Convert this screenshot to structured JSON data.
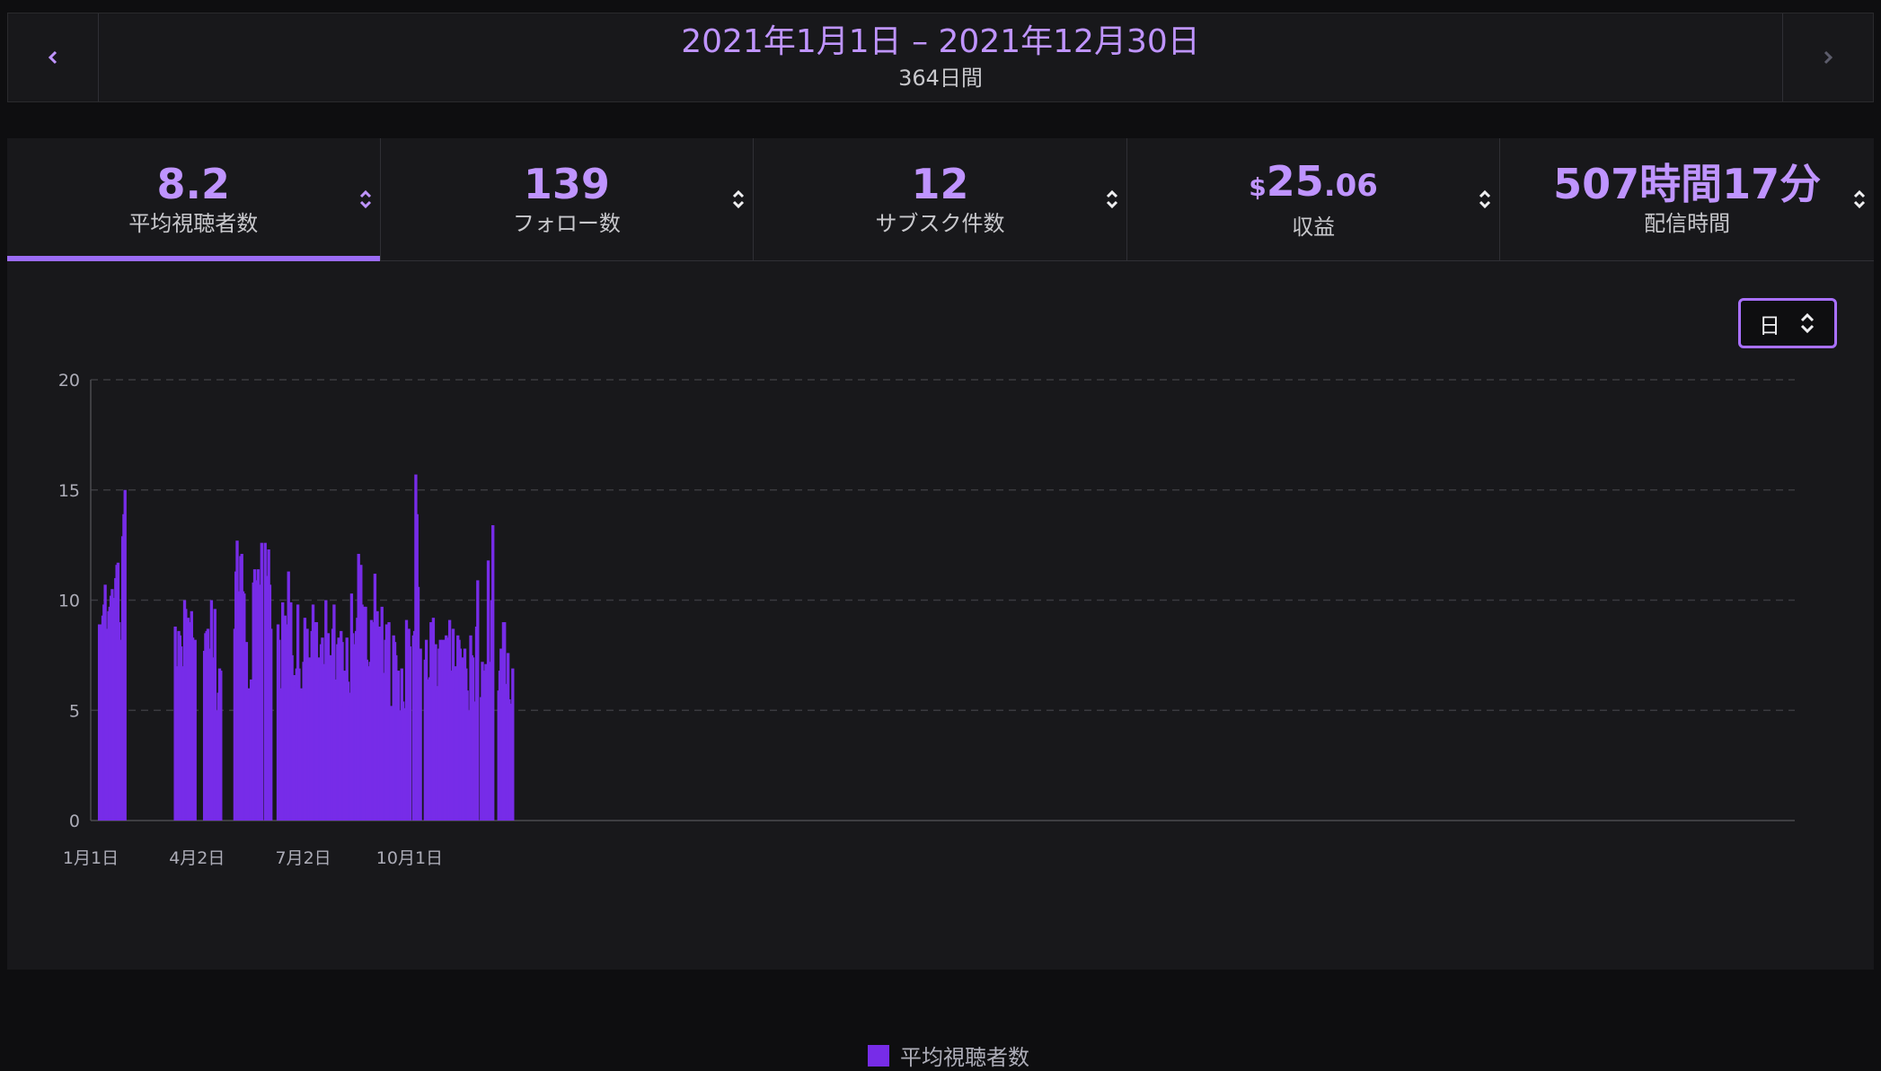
{
  "header": {
    "date_range": "2021年1月1日 – 2021年12月30日",
    "days": "364日間",
    "prev_icon": "chevron-left-icon",
    "next_icon": "chevron-right-icon"
  },
  "tabs": [
    {
      "value": "8.2",
      "label": "平均視聴者数",
      "active": true
    },
    {
      "value": "139",
      "label": "フォロー数"
    },
    {
      "value": "12",
      "label": "サブスク件数"
    },
    {
      "dollar": "$",
      "value": "25",
      "cents": ".06",
      "label": "収益"
    },
    {
      "value": "507時間17分",
      "label": "配信時間"
    }
  ],
  "interval": {
    "selected": "日",
    "icon": "sort-chevrons-icon"
  },
  "colors": {
    "accent": "#bf94ff",
    "bar": "#772ce8",
    "active_underline": "#9b6cf6"
  },
  "chart_data": {
    "type": "bar",
    "title": "",
    "xlabel": "",
    "ylabel": "",
    "ylim": [
      0,
      20
    ],
    "yticks": [
      "0",
      "5",
      "10",
      "15",
      "20"
    ],
    "xticks": [
      {
        "label": "1月1日",
        "date": "2021-01-01"
      },
      {
        "label": "4月2日",
        "date": "2021-04-02"
      },
      {
        "label": "7月2日",
        "date": "2021-07-02"
      },
      {
        "label": "10月1日",
        "date": "2021-10-01"
      }
    ],
    "grid": true,
    "legend_position": "bottom-center",
    "series": [
      {
        "name": "平均視聴者数",
        "color": "#772ce8",
        "points": [
          [
            "2021-01-07",
            8.9
          ],
          [
            "2021-01-08",
            7.8
          ],
          [
            "2021-01-09",
            8.9
          ],
          [
            "2021-01-10",
            9.3
          ],
          [
            "2021-01-11",
            9.8
          ],
          [
            "2021-01-12",
            10.7
          ],
          [
            "2021-01-13",
            8.6
          ],
          [
            "2021-01-14",
            8.7
          ],
          [
            "2021-01-15",
            9.5
          ],
          [
            "2021-01-16",
            9.7
          ],
          [
            "2021-01-17",
            10.2
          ],
          [
            "2021-01-18",
            10.5
          ],
          [
            "2021-01-19",
            9.3
          ],
          [
            "2021-01-20",
            10.1
          ],
          [
            "2021-01-21",
            11.0
          ],
          [
            "2021-01-22",
            11.6
          ],
          [
            "2021-01-23",
            11.7
          ],
          [
            "2021-01-24",
            9.0
          ],
          [
            "2021-01-25",
            8.2
          ],
          [
            "2021-01-27",
            12.9
          ],
          [
            "2021-01-28",
            13.9
          ],
          [
            "2021-01-29",
            15.0
          ],
          [
            "2021-03-13",
            8.8
          ],
          [
            "2021-03-14",
            7.0
          ],
          [
            "2021-03-15",
            6.6
          ],
          [
            "2021-03-16",
            8.6
          ],
          [
            "2021-03-17",
            8.4
          ],
          [
            "2021-03-18",
            7.9
          ],
          [
            "2021-03-19",
            7.0
          ],
          [
            "2021-03-20",
            6.8
          ],
          [
            "2021-03-21",
            10.0
          ],
          [
            "2021-03-22",
            9.6
          ],
          [
            "2021-03-23",
            9.0
          ],
          [
            "2021-03-24",
            9.2
          ],
          [
            "2021-03-25",
            9.0
          ],
          [
            "2021-03-26",
            6.9
          ],
          [
            "2021-03-27",
            9.5
          ],
          [
            "2021-03-28",
            8.3
          ],
          [
            "2021-03-29",
            8.1
          ],
          [
            "2021-03-30",
            8.2
          ],
          [
            "2021-04-07",
            7.7
          ],
          [
            "2021-04-08",
            8.5
          ],
          [
            "2021-04-09",
            8.6
          ],
          [
            "2021-04-10",
            8.7
          ],
          [
            "2021-04-11",
            7.8
          ],
          [
            "2021-04-13",
            10.0
          ],
          [
            "2021-04-14",
            7.0
          ],
          [
            "2021-04-15",
            7.4
          ],
          [
            "2021-04-16",
            9.6
          ],
          [
            "2021-04-18",
            5.0
          ],
          [
            "2021-04-19",
            5.8
          ],
          [
            "2021-04-20",
            6.9
          ],
          [
            "2021-04-21",
            6.8
          ],
          [
            "2021-05-03",
            8.7
          ],
          [
            "2021-05-04",
            11.3
          ],
          [
            "2021-05-05",
            12.7
          ],
          [
            "2021-05-06",
            10.4
          ],
          [
            "2021-05-07",
            9.3
          ],
          [
            "2021-05-08",
            12.0
          ],
          [
            "2021-05-09",
            12.1
          ],
          [
            "2021-05-10",
            10.4
          ],
          [
            "2021-05-11",
            10.3
          ],
          [
            "2021-05-12",
            7.5
          ],
          [
            "2021-05-13",
            8.1
          ],
          [
            "2021-05-14",
            5.7
          ],
          [
            "2021-05-15",
            6.0
          ],
          [
            "2021-05-17",
            6.4
          ],
          [
            "2021-05-18",
            6.3
          ],
          [
            "2021-05-19",
            10.8
          ],
          [
            "2021-05-20",
            11.4
          ],
          [
            "2021-05-21",
            10.9
          ],
          [
            "2021-05-22",
            8.6
          ],
          [
            "2021-05-23",
            11.4
          ],
          [
            "2021-05-24",
            10.7
          ],
          [
            "2021-05-25",
            10.5
          ],
          [
            "2021-05-26",
            12.6
          ],
          [
            "2021-05-29",
            12.6
          ],
          [
            "2021-05-30",
            10.2
          ],
          [
            "2021-05-31",
            11.1
          ],
          [
            "2021-06-01",
            12.3
          ],
          [
            "2021-06-02",
            10.7
          ],
          [
            "2021-06-03",
            8.7
          ],
          [
            "2021-06-09",
            8.9
          ],
          [
            "2021-06-10",
            8.2
          ],
          [
            "2021-06-11",
            5.6
          ],
          [
            "2021-06-12",
            6.0
          ],
          [
            "2021-06-13",
            9.9
          ],
          [
            "2021-06-14",
            6.7
          ],
          [
            "2021-06-15",
            9.3
          ],
          [
            "2021-06-16",
            8.9
          ],
          [
            "2021-06-17",
            8.8
          ],
          [
            "2021-06-18",
            11.3
          ],
          [
            "2021-06-19",
            8.7
          ],
          [
            "2021-06-20",
            9.9
          ],
          [
            "2021-06-21",
            7.5
          ],
          [
            "2021-06-22",
            5.8
          ],
          [
            "2021-06-23",
            6.6
          ],
          [
            "2021-06-24",
            6.1
          ],
          [
            "2021-06-25",
            6.9
          ],
          [
            "2021-06-26",
            9.8
          ],
          [
            "2021-06-27",
            6.9
          ],
          [
            "2021-06-28",
            5.6
          ],
          [
            "2021-06-29",
            6.0
          ],
          [
            "2021-06-30",
            5.0
          ],
          [
            "2021-07-01",
            7.2
          ],
          [
            "2021-07-02",
            9.2
          ],
          [
            "2021-07-03",
            8.0
          ],
          [
            "2021-07-04",
            8.7
          ],
          [
            "2021-07-05",
            7.3
          ],
          [
            "2021-07-06",
            7.4
          ],
          [
            "2021-07-07",
            7.0
          ],
          [
            "2021-07-08",
            8.6
          ],
          [
            "2021-07-09",
            9.8
          ],
          [
            "2021-07-10",
            7.6
          ],
          [
            "2021-07-11",
            9.0
          ],
          [
            "2021-07-12",
            9.0
          ],
          [
            "2021-07-13",
            5.3
          ],
          [
            "2021-07-14",
            7.4
          ],
          [
            "2021-07-15",
            6.3
          ],
          [
            "2021-07-16",
            8.0
          ],
          [
            "2021-07-17",
            8.3
          ],
          [
            "2021-07-18",
            6.3
          ],
          [
            "2021-07-19",
            7.1
          ],
          [
            "2021-07-20",
            10.0
          ],
          [
            "2021-07-21",
            7.9
          ],
          [
            "2021-07-22",
            8.5
          ],
          [
            "2021-07-23",
            7.5
          ],
          [
            "2021-07-24",
            7.5
          ],
          [
            "2021-07-25",
            7.0
          ],
          [
            "2021-07-26",
            8.7
          ],
          [
            "2021-07-27",
            9.8
          ],
          [
            "2021-07-28",
            6.4
          ],
          [
            "2021-07-29",
            4.9
          ],
          [
            "2021-07-30",
            8.0
          ],
          [
            "2021-07-31",
            8.3
          ],
          [
            "2021-08-01",
            7.0
          ],
          [
            "2021-08-02",
            8.6
          ],
          [
            "2021-08-03",
            8.1
          ],
          [
            "2021-08-04",
            5.2
          ],
          [
            "2021-08-05",
            6.8
          ],
          [
            "2021-08-07",
            8.3
          ],
          [
            "2021-08-08",
            6.3
          ],
          [
            "2021-08-09",
            5.2
          ],
          [
            "2021-08-10",
            5.8
          ],
          [
            "2021-08-11",
            10.3
          ],
          [
            "2021-08-12",
            8.5
          ],
          [
            "2021-08-13",
            6.1
          ],
          [
            "2021-08-14",
            8.0
          ],
          [
            "2021-08-15",
            8.6
          ],
          [
            "2021-08-16",
            9.2
          ],
          [
            "2021-08-17",
            12.1
          ],
          [
            "2021-08-18",
            8.8
          ],
          [
            "2021-08-19",
            11.6
          ],
          [
            "2021-08-20",
            9.8
          ],
          [
            "2021-08-21",
            7.4
          ],
          [
            "2021-08-22",
            9.7
          ],
          [
            "2021-08-23",
            9.7
          ],
          [
            "2021-08-24",
            7.3
          ],
          [
            "2021-08-25",
            7.0
          ],
          [
            "2021-08-27",
            7.2
          ],
          [
            "2021-08-28",
            9.1
          ],
          [
            "2021-08-29",
            8.8
          ],
          [
            "2021-08-30",
            9.0
          ],
          [
            "2021-08-31",
            11.2
          ],
          [
            "2021-09-01",
            7.7
          ],
          [
            "2021-09-02",
            9.5
          ],
          [
            "2021-09-03",
            7.3
          ],
          [
            "2021-09-04",
            8.8
          ],
          [
            "2021-09-05",
            7.5
          ],
          [
            "2021-09-06",
            9.7
          ],
          [
            "2021-09-07",
            5.8
          ],
          [
            "2021-09-08",
            6.7
          ],
          [
            "2021-09-09",
            8.2
          ],
          [
            "2021-09-10",
            8.9
          ],
          [
            "2021-09-11",
            6.3
          ],
          [
            "2021-09-12",
            9.0
          ],
          [
            "2021-09-14",
            5.2
          ],
          [
            "2021-09-16",
            8.4
          ],
          [
            "2021-09-17",
            8.1
          ],
          [
            "2021-09-18",
            7.5
          ],
          [
            "2021-09-19",
            5.8
          ],
          [
            "2021-09-20",
            6.8
          ],
          [
            "2021-09-21",
            5.0
          ],
          [
            "2021-09-23",
            6.9
          ],
          [
            "2021-09-24",
            5.4
          ],
          [
            "2021-09-25",
            3.9
          ],
          [
            "2021-09-26",
            5.1
          ],
          [
            "2021-09-27",
            9.1
          ],
          [
            "2021-09-28",
            8.0
          ],
          [
            "2021-09-29",
            8.7
          ],
          [
            "2021-09-30",
            7.9
          ],
          [
            "2021-10-03",
            8.4
          ],
          [
            "2021-10-04",
            8.6
          ],
          [
            "2021-10-05",
            15.7
          ],
          [
            "2021-10-06",
            13.9
          ],
          [
            "2021-10-07",
            10.6
          ],
          [
            "2021-10-08",
            6.6
          ],
          [
            "2021-10-09",
            7.8
          ],
          [
            "2021-10-13",
            7.3
          ],
          [
            "2021-10-14",
            8.2
          ],
          [
            "2021-10-15",
            6.4
          ],
          [
            "2021-10-16",
            6.4
          ],
          [
            "2021-10-17",
            6.5
          ],
          [
            "2021-10-18",
            9.0
          ],
          [
            "2021-10-19",
            8.5
          ],
          [
            "2021-10-20",
            9.2
          ],
          [
            "2021-10-21",
            6.5
          ],
          [
            "2021-10-22",
            8.0
          ],
          [
            "2021-10-23",
            5.9
          ],
          [
            "2021-10-24",
            6.1
          ],
          [
            "2021-10-25",
            7.8
          ],
          [
            "2021-10-26",
            8.2
          ],
          [
            "2021-10-27",
            6.8
          ],
          [
            "2021-10-28",
            8.2
          ],
          [
            "2021-10-29",
            6.3
          ],
          [
            "2021-10-30",
            8.2
          ],
          [
            "2021-10-31",
            8.4
          ],
          [
            "2021-11-01",
            6.9
          ],
          [
            "2021-11-02",
            8.3
          ],
          [
            "2021-11-03",
            9.1
          ],
          [
            "2021-11-04",
            6.5
          ],
          [
            "2021-11-05",
            6.8
          ],
          [
            "2021-11-06",
            8.7
          ],
          [
            "2021-11-07",
            6.0
          ],
          [
            "2021-11-08",
            7.0
          ],
          [
            "2021-11-10",
            8.4
          ],
          [
            "2021-11-11",
            8.2
          ],
          [
            "2021-11-12",
            7.8
          ],
          [
            "2021-11-13",
            6.5
          ],
          [
            "2021-11-14",
            7.4
          ],
          [
            "2021-11-15",
            6.5
          ],
          [
            "2021-11-16",
            7.8
          ],
          [
            "2021-11-17",
            6.9
          ],
          [
            "2021-11-18",
            5.9
          ],
          [
            "2021-11-19",
            5.0
          ],
          [
            "2021-11-21",
            8.4
          ],
          [
            "2021-11-22",
            7.5
          ],
          [
            "2021-11-23",
            7.4
          ],
          [
            "2021-11-24",
            2.5
          ],
          [
            "2021-11-25",
            5.4
          ],
          [
            "2021-11-26",
            8.8
          ],
          [
            "2021-11-27",
            10.9
          ],
          [
            "2021-11-30",
            5.6
          ],
          [
            "2021-12-01",
            7.2
          ],
          [
            "2021-12-02",
            6.8
          ],
          [
            "2021-12-03",
            6.6
          ],
          [
            "2021-12-04",
            7.1
          ],
          [
            "2021-12-05",
            6.9
          ],
          [
            "2021-12-06",
            11.8
          ],
          [
            "2021-12-07",
            6.9
          ],
          [
            "2021-12-08",
            7.2
          ],
          [
            "2021-12-09",
            10.0
          ],
          [
            "2021-12-10",
            13.4
          ],
          [
            "2021-12-15",
            5.9
          ],
          [
            "2021-12-16",
            6.8
          ],
          [
            "2021-12-17",
            7.8
          ],
          [
            "2021-12-18",
            7.7
          ],
          [
            "2021-12-19",
            9.0
          ],
          [
            "2021-12-20",
            9.0
          ],
          [
            "2021-12-21",
            6.2
          ],
          [
            "2021-12-22",
            5.7
          ],
          [
            "2021-12-23",
            7.6
          ],
          [
            "2021-12-24",
            5.5
          ],
          [
            "2021-12-25",
            4.4
          ],
          [
            "2021-12-26",
            5.3
          ],
          [
            "2021-12-27",
            6.9
          ]
        ]
      }
    ]
  }
}
